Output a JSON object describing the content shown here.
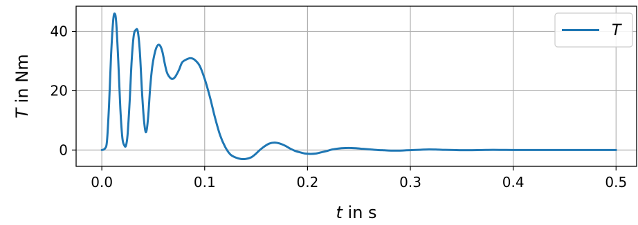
{
  "chart_data": {
    "type": "line",
    "xlabel": {
      "var": "t",
      "rest": " in s"
    },
    "ylabel": {
      "var": "T",
      "rest": " in Nm"
    },
    "xlim": [
      -0.025,
      0.52
    ],
    "ylim": [
      -5.5,
      48.5
    ],
    "xticks": [
      0.0,
      0.1,
      0.2,
      0.3,
      0.4,
      0.5
    ],
    "xtick_labels": [
      "0.0",
      "0.1",
      "0.2",
      "0.3",
      "0.4",
      "0.5"
    ],
    "yticks": [
      0,
      20,
      40
    ],
    "ytick_labels": [
      "0",
      "20",
      "40"
    ],
    "grid": true,
    "legend": {
      "placement": "top-right",
      "entries": [
        "T"
      ]
    },
    "series": [
      {
        "name": "T",
        "color": "#1f77b4",
        "x": [
          0.0,
          0.003,
          0.005,
          0.007,
          0.009,
          0.011,
          0.0125,
          0.014,
          0.016,
          0.018,
          0.02,
          0.022,
          0.0235,
          0.025,
          0.027,
          0.029,
          0.031,
          0.033,
          0.035,
          0.037,
          0.039,
          0.041,
          0.043,
          0.045,
          0.047,
          0.049,
          0.051,
          0.053,
          0.055,
          0.057,
          0.059,
          0.061,
          0.063,
          0.065,
          0.068,
          0.071,
          0.075,
          0.078,
          0.082,
          0.086,
          0.09,
          0.095,
          0.1,
          0.105,
          0.11,
          0.115,
          0.12,
          0.125,
          0.13,
          0.135,
          0.14,
          0.145,
          0.149,
          0.153,
          0.158,
          0.163,
          0.168,
          0.173,
          0.178,
          0.183,
          0.188,
          0.193,
          0.198,
          0.203,
          0.208,
          0.213,
          0.218,
          0.223,
          0.228,
          0.233,
          0.24,
          0.247,
          0.254,
          0.261,
          0.268,
          0.275,
          0.282,
          0.289,
          0.296,
          0.303,
          0.31,
          0.318,
          0.326,
          0.334,
          0.342,
          0.35,
          0.36,
          0.37,
          0.38,
          0.39,
          0.4,
          0.42,
          0.44,
          0.46,
          0.48,
          0.5
        ],
        "y": [
          0.0,
          0.5,
          3.0,
          15.0,
          32.0,
          43.5,
          46.0,
          43.0,
          30.0,
          14.0,
          4.0,
          1.5,
          1.5,
          5.0,
          16.0,
          30.0,
          38.5,
          40.5,
          40.0,
          33.0,
          20.0,
          10.0,
          6.0,
          11.0,
          21.0,
          28.0,
          32.0,
          34.5,
          35.5,
          35.0,
          33.0,
          29.5,
          26.5,
          25.0,
          24.0,
          24.5,
          27.0,
          29.5,
          30.5,
          31.0,
          30.5,
          28.5,
          24.0,
          18.0,
          11.0,
          5.0,
          1.0,
          -1.5,
          -2.5,
          -3.0,
          -3.0,
          -2.5,
          -1.5,
          -0.2,
          1.2,
          2.2,
          2.5,
          2.2,
          1.5,
          0.5,
          -0.3,
          -0.8,
          -1.2,
          -1.3,
          -1.2,
          -0.8,
          -0.4,
          0.1,
          0.4,
          0.6,
          0.7,
          0.6,
          0.4,
          0.2,
          0.0,
          -0.1,
          -0.2,
          -0.2,
          -0.1,
          0.0,
          0.1,
          0.2,
          0.15,
          0.05,
          0.0,
          -0.05,
          -0.05,
          0.0,
          0.05,
          0.03,
          0.0,
          0.0,
          0.0,
          0.0,
          0.0,
          0.0
        ]
      }
    ]
  }
}
